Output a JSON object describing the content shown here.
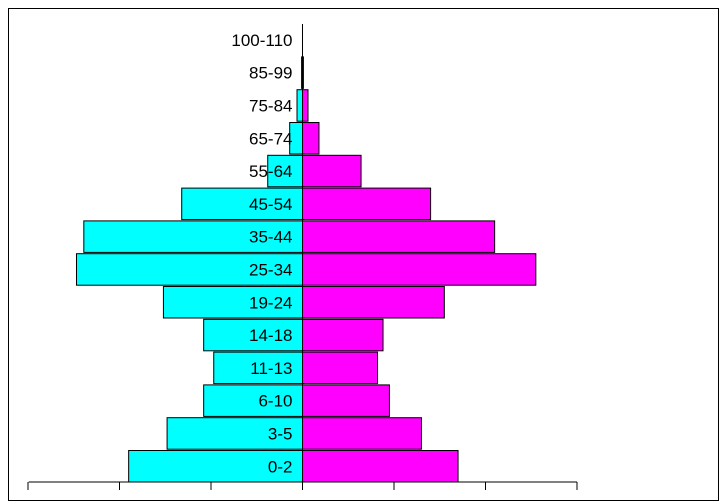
{
  "chart_data": {
    "type": "bar",
    "orientation": "horizontal",
    "layout": "population-pyramid",
    "title": "",
    "xlabel": "",
    "ylabel": "",
    "categories": [
      "0-2",
      "3-5",
      "6-10",
      "11-13",
      "14-18",
      "19-24",
      "25-34",
      "35-44",
      "45-54",
      "55-64",
      "65-74",
      "75-84",
      "85-99",
      "100-110"
    ],
    "series": [
      {
        "side": "left",
        "color": "#00FFFF",
        "values": [
          19,
          14.8,
          10.8,
          9.7,
          10.8,
          15.2,
          24.7,
          23.9,
          13.2,
          3.8,
          1.4,
          0.6,
          0.1,
          0
        ]
      },
      {
        "side": "right",
        "color": "#FF00FF",
        "values": [
          17,
          13,
          9.5,
          8.2,
          8.8,
          15.5,
          25.5,
          21,
          14,
          6.4,
          1.8,
          0.6,
          0.1,
          0
        ]
      }
    ],
    "xlim": [
      -30,
      30
    ],
    "x_tick_step": 10,
    "tick_labels_shown": false,
    "grid": false,
    "legend": "none"
  }
}
